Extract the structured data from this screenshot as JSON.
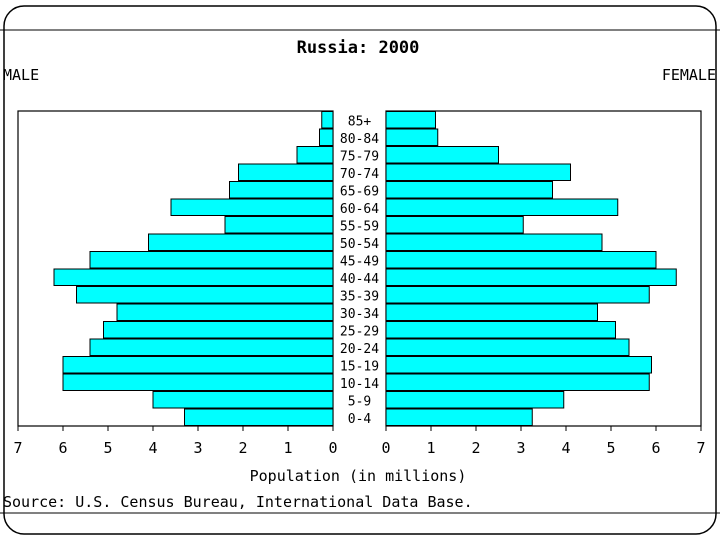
{
  "chart_data": {
    "type": "bar",
    "title": "Russia: 2000",
    "left_label": "MALE",
    "right_label": "FEMALE",
    "xlabel": "Population (in millions)",
    "source": "Source: U.S. Census Bureau, International Data Base.",
    "xlim": [
      0,
      7
    ],
    "ticks": [
      "0",
      "1",
      "2",
      "3",
      "4",
      "5",
      "6",
      "7"
    ],
    "categories": [
      "85+",
      "80-84",
      "75-79",
      "70-74",
      "65-69",
      "60-64",
      "55-59",
      "50-54",
      "45-49",
      "40-44",
      "35-39",
      "30-34",
      "25-29",
      "20-24",
      "15-19",
      "10-14",
      "5-9",
      "0-4"
    ],
    "series": [
      {
        "name": "MALE",
        "values": [
          0.25,
          0.3,
          0.8,
          2.1,
          2.3,
          3.6,
          2.4,
          4.1,
          5.4,
          6.2,
          5.7,
          4.8,
          5.1,
          5.4,
          6.0,
          6.0,
          4.0,
          3.3
        ]
      },
      {
        "name": "FEMALE",
        "values": [
          1.1,
          1.15,
          2.5,
          4.1,
          3.7,
          5.15,
          3.05,
          4.8,
          6.0,
          6.45,
          5.85,
          4.7,
          5.1,
          5.4,
          5.9,
          5.85,
          3.95,
          3.25
        ]
      }
    ],
    "bar_color": "#00ffff"
  }
}
